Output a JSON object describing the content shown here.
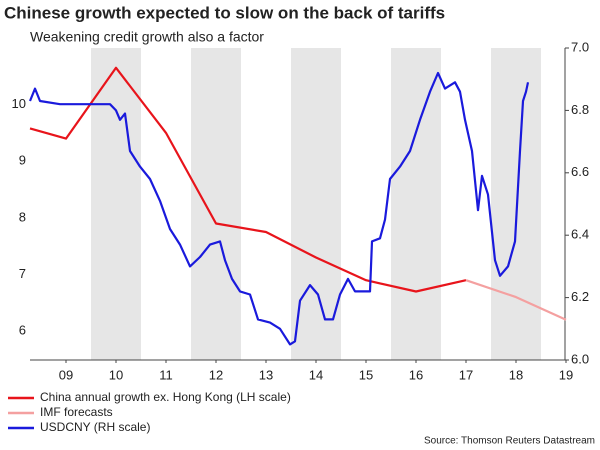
{
  "chart_data": {
    "type": "line",
    "title": "Chinese growth expected to slow on the back of tariffs",
    "subtitle": "Weakening credit growth also a factor",
    "source": "Source: Thomson Reuters Datastream",
    "xlim": [
      2008.78,
      2019.48
    ],
    "xticks": [
      {
        "value": 2009.5,
        "label": "09"
      },
      {
        "value": 2010.5,
        "label": "10"
      },
      {
        "value": 2011.5,
        "label": "11"
      },
      {
        "value": 2012.5,
        "label": "12"
      },
      {
        "value": 2013.5,
        "label": "13"
      },
      {
        "value": 2014.5,
        "label": "14"
      },
      {
        "value": 2015.5,
        "label": "15"
      },
      {
        "value": 2016.5,
        "label": "16"
      },
      {
        "value": 2017.5,
        "label": "17"
      },
      {
        "value": 2018.5,
        "label": "18"
      },
      {
        "value": 2019.5,
        "label": "19"
      }
    ],
    "ylim": [
      5.49,
      11.0
    ],
    "yticks": [
      6,
      7,
      8,
      9,
      10
    ],
    "y2lim": [
      6.0,
      7.0
    ],
    "y2ticks": [
      {
        "value": 6.0,
        "label": "6.0"
      },
      6.2,
      6.4,
      6.6,
      6.8,
      {
        "value": 7.0,
        "label": "7.0"
      }
    ],
    "shaded_years": [
      2010,
      2012,
      2014,
      2016,
      2018
    ],
    "grid": false,
    "series": [
      {
        "name": "China annual growth ex. Hong Kong (LH scale)",
        "color": "#e8141b",
        "x": [
          2008.78,
          2009.5,
          2010.5,
          2011.5,
          2012.5,
          2013.5,
          2014.5,
          2015.5,
          2016.5,
          2017.5
        ],
        "values": [
          9.58,
          9.4,
          10.65,
          9.5,
          7.9,
          7.75,
          7.3,
          6.9,
          6.7,
          6.9
        ]
      },
      {
        "name": "IMF forecasts",
        "color": "#f4a0a0",
        "x": [
          2017.5,
          2018.5,
          2019.5
        ],
        "values": [
          6.9,
          6.6,
          6.2
        ]
      },
      {
        "name": "USDCNY (RH scale)",
        "color": "#1a1adc",
        "axis": "y2",
        "x": [
          2008.78,
          2008.88,
          2008.98,
          2009.38,
          2009.78,
          2010.38,
          2010.5,
          2010.58,
          2010.68,
          2010.78,
          2010.98,
          2011.18,
          2011.38,
          2011.58,
          2011.78,
          2011.98,
          2012.18,
          2012.38,
          2012.58,
          2012.68,
          2012.82,
          2012.98,
          2013.18,
          2013.34,
          2013.58,
          2013.78,
          2013.98,
          2014.08,
          2014.18,
          2014.38,
          2014.54,
          2014.68,
          2014.84,
          2014.98,
          2015.14,
          2015.28,
          2015.58,
          2015.62,
          2015.78,
          2015.88,
          2015.98,
          2016.18,
          2016.38,
          2016.58,
          2016.78,
          2016.94,
          2017.08,
          2017.28,
          2017.38,
          2017.48,
          2017.62,
          2017.74,
          2017.82,
          2017.94,
          2018.08,
          2018.18,
          2018.34,
          2018.48,
          2018.58,
          2018.64,
          2018.7,
          2018.74
        ],
        "values": [
          6.83,
          6.87,
          6.83,
          6.82,
          6.82,
          6.82,
          6.8,
          6.77,
          6.79,
          6.67,
          6.62,
          6.58,
          6.51,
          6.42,
          6.37,
          6.3,
          6.33,
          6.37,
          6.38,
          6.32,
          6.26,
          6.22,
          6.21,
          6.13,
          6.12,
          6.1,
          6.05,
          6.06,
          6.19,
          6.24,
          6.21,
          6.13,
          6.13,
          6.21,
          6.26,
          6.22,
          6.22,
          6.38,
          6.39,
          6.45,
          6.58,
          6.62,
          6.67,
          6.77,
          6.86,
          6.92,
          6.87,
          6.89,
          6.86,
          6.77,
          6.67,
          6.48,
          6.59,
          6.53,
          6.32,
          6.27,
          6.3,
          6.38,
          6.67,
          6.83,
          6.86,
          6.89
        ]
      }
    ]
  }
}
